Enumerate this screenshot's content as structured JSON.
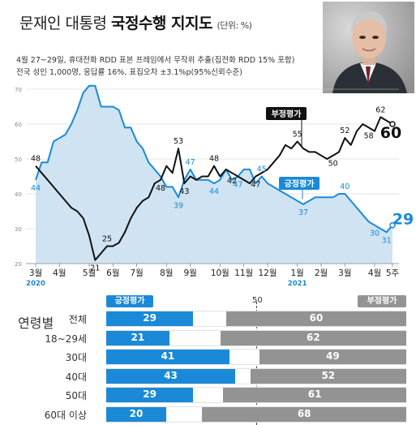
{
  "header": {
    "title_normal": "문재인 대통령",
    "title_bold": "국정수행 지지도",
    "unit": "(단위: %)",
    "note_line1": "4월 27~29일, 휴대전화 RDD 표본 프레임에서 무작위 추출(집전화 RDD 15% 포함)",
    "note_line2": "전국 성인 1,000명, 응답률 16%, 표집오차 ±3.1%p(95%신뢰수준)"
  },
  "colors": {
    "positive": "#1a8ad8",
    "positive_fill": "#cfe3f2",
    "negative": "#111111",
    "negative_bar": "#939393",
    "grid": "#cccccc"
  },
  "chart_data": {
    "type": "line",
    "y_ticks": [
      "20",
      "30",
      "40",
      "50",
      "60",
      "70"
    ],
    "ylim": [
      20,
      72
    ],
    "x_ticks": [
      "3월",
      "4월",
      "5월",
      "6월",
      "7월",
      "8월",
      "9월",
      "10월",
      "11월",
      "12월",
      "1월",
      "2월",
      "3월",
      "4월",
      "5주"
    ],
    "x_tick_pos": [
      0,
      4,
      9,
      13,
      17,
      22,
      26,
      31,
      35,
      39,
      44,
      48,
      52,
      57,
      60
    ],
    "year_labels": [
      {
        "text": "2020",
        "at": 0
      },
      {
        "text": "2021",
        "at": 44
      }
    ],
    "n_points": 61,
    "series": [
      {
        "name": "긍정평가",
        "values": [
          44,
          49,
          49,
          55,
          56,
          57,
          60,
          64,
          69,
          71,
          71,
          65,
          65,
          65,
          64,
          59,
          59,
          55,
          53,
          49,
          47,
          45,
          42,
          42,
          39,
          44,
          47,
          44,
          44,
          44,
          43,
          44,
          47,
          44,
          45,
          47,
          47,
          43,
          45,
          43,
          42,
          41,
          40,
          39,
          38,
          37,
          38,
          39,
          39,
          39,
          39,
          40,
          40,
          38,
          36,
          34,
          32,
          31,
          30,
          29,
          31
        ],
        "labels": [
          {
            "i": 0,
            "text": "44"
          },
          {
            "i": 9,
            "text": "71"
          },
          {
            "i": 24,
            "text": "39"
          },
          {
            "i": 26,
            "text": "47"
          },
          {
            "i": 30,
            "text": "44"
          },
          {
            "i": 34,
            "text": "47"
          },
          {
            "i": 38,
            "text": "45"
          },
          {
            "i": 45,
            "text": "37"
          },
          {
            "i": 52,
            "text": "40"
          },
          {
            "i": 57,
            "text": "30"
          },
          {
            "i": 59,
            "text": "31"
          }
        ],
        "end_label": "29",
        "tag": "긍정평가"
      },
      {
        "name": "부정평가",
        "values": [
          48,
          46,
          44,
          42,
          40,
          38,
          36,
          35,
          33,
          28,
          21,
          23,
          25,
          25,
          26,
          29,
          33,
          36,
          38,
          39,
          43,
          44,
          48,
          46,
          53,
          43,
          45,
          44,
          45,
          45,
          48,
          45,
          47,
          46,
          45,
          44,
          43,
          45,
          46,
          47,
          49,
          51,
          54,
          53,
          55,
          53,
          52,
          52,
          51,
          50,
          51,
          52,
          56,
          54,
          58,
          60,
          59,
          58,
          62,
          61,
          60
        ],
        "labels": [
          {
            "i": 0,
            "text": "48"
          },
          {
            "i": 10,
            "text": "21"
          },
          {
            "i": 12,
            "text": "25"
          },
          {
            "i": 21,
            "text": "48"
          },
          {
            "i": 24,
            "text": "53"
          },
          {
            "i": 25,
            "text": "43"
          },
          {
            "i": 30,
            "text": "48"
          },
          {
            "i": 33,
            "text": "42"
          },
          {
            "i": 37,
            "text": "47"
          },
          {
            "i": 44,
            "text": "55"
          },
          {
            "i": 50,
            "text": "50"
          },
          {
            "i": 52,
            "text": "52"
          },
          {
            "i": 56,
            "text": "58"
          },
          {
            "i": 58,
            "text": "62"
          }
        ],
        "end_label": "60",
        "tag": "부정평가"
      }
    ]
  },
  "age_section": {
    "title": "연령별",
    "pos_legend": "긍정평가",
    "neg_legend": "부정평가",
    "fifty": "50",
    "rows": [
      {
        "label": "전체",
        "pos": 29,
        "neg": 60,
        "pos_text": "29",
        "neg_text": "60"
      },
      {
        "label": "18~29세",
        "pos": 21,
        "neg": 62,
        "pos_text": "21",
        "neg_text": "62"
      },
      {
        "label": "30대",
        "pos": 41,
        "neg": 49,
        "pos_text": "41",
        "neg_text": "49"
      },
      {
        "label": "40대",
        "pos": 43,
        "neg": 52,
        "pos_text": "43",
        "neg_text": "52"
      },
      {
        "label": "50대",
        "pos": 29,
        "neg": 61,
        "pos_text": "29",
        "neg_text": "61"
      },
      {
        "label": "60대 이상",
        "pos": 20,
        "neg": 68,
        "pos_text": "20",
        "neg_text": "68"
      }
    ]
  }
}
